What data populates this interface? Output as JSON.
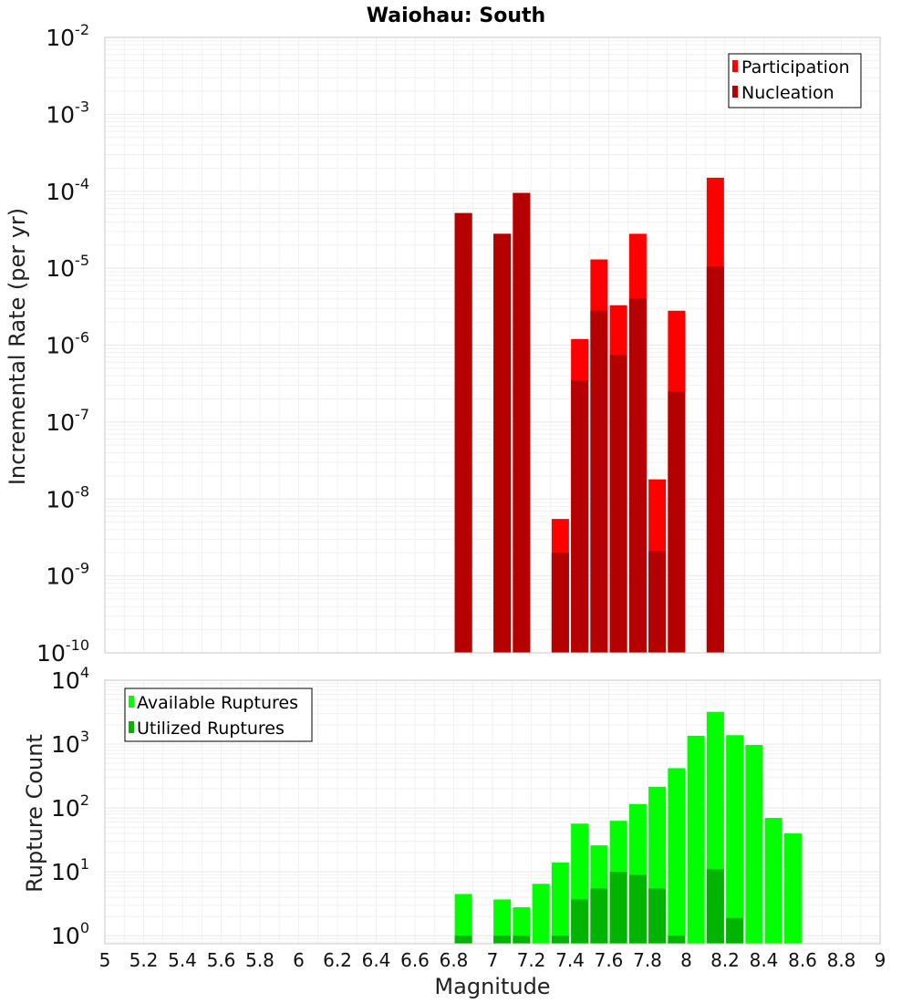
{
  "title": "Waiohau: South",
  "xlabel": "Magnitude",
  "chart_data": [
    {
      "type": "bar",
      "title": "Waiohau: South",
      "ylabel": "Incremental Rate (per yr)",
      "xlabel": "",
      "yscale": "log",
      "ylim": [
        1e-10,
        0.01
      ],
      "xlim": [
        5,
        9
      ],
      "legend": {
        "position": "top-right",
        "entries": [
          "Participation",
          "Nucleation"
        ]
      },
      "colors": {
        "Participation": "#ff0000",
        "Nucleation": "#b40000"
      },
      "x": [
        6.85,
        7.05,
        7.15,
        7.35,
        7.45,
        7.55,
        7.65,
        7.75,
        7.85,
        7.95,
        8.15
      ],
      "series": [
        {
          "name": "Participation",
          "values": [
            5.2e-05,
            2.8e-05,
            9.5e-05,
            5.5e-09,
            1.2e-06,
            1.3e-05,
            3.3e-06,
            2.8e-05,
            1.8e-08,
            2.8e-06,
            0.00015
          ]
        },
        {
          "name": "Nucleation",
          "values": [
            5.2e-05,
            2.8e-05,
            9.5e-05,
            2e-09,
            3.5e-07,
            2.8e-06,
            7.5e-07,
            4e-06,
            2.1e-09,
            2.5e-07,
            1.05e-05
          ]
        }
      ],
      "grid": true
    },
    {
      "type": "bar",
      "ylabel": "Rupture Count",
      "xlabel": "Magnitude",
      "yscale": "log",
      "ylim": [
        0.75,
        10000
      ],
      "xlim": [
        5,
        9
      ],
      "legend": {
        "position": "top-left",
        "entries": [
          "Available Ruptures",
          "Utilized Ruptures"
        ]
      },
      "colors": {
        "Available Ruptures": "#00ff00",
        "Utilized Ruptures": "#00b400"
      },
      "x": [
        6.85,
        7.05,
        7.15,
        7.25,
        7.35,
        7.45,
        7.55,
        7.65,
        7.75,
        7.85,
        7.95,
        8.05,
        8.15,
        8.25,
        8.35,
        8.45,
        8.55
      ],
      "series": [
        {
          "name": "Available Ruptures",
          "values": [
            4.5,
            3.7,
            2.8,
            6.5,
            14,
            57,
            26,
            63,
            115,
            215,
            420,
            1350,
            3200,
            1380,
            970,
            70,
            40
          ]
        },
        {
          "name": "Utilized Ruptures",
          "values": [
            1,
            1,
            1,
            null,
            1,
            3.7,
            5.5,
            10,
            9,
            5.5,
            1,
            null,
            11,
            1.9,
            null,
            null,
            null
          ]
        }
      ],
      "grid": true
    }
  ],
  "xticks": [
    "5",
    "5.2",
    "5.4",
    "5.6",
    "5.8",
    "6",
    "6.2",
    "6.4",
    "6.6",
    "6.8",
    "7",
    "7.2",
    "7.4",
    "7.6",
    "7.8",
    "8",
    "8.2",
    "8.4",
    "8.6",
    "8.8",
    "9"
  ],
  "top_yticks": [
    {
      "base": "10",
      "exp": "-10"
    },
    {
      "base": "10",
      "exp": "-9"
    },
    {
      "base": "10",
      "exp": "-8"
    },
    {
      "base": "10",
      "exp": "-7"
    },
    {
      "base": "10",
      "exp": "-6"
    },
    {
      "base": "10",
      "exp": "-5"
    },
    {
      "base": "10",
      "exp": "-4"
    },
    {
      "base": "10",
      "exp": "-3"
    },
    {
      "base": "10",
      "exp": "-2"
    }
  ],
  "bottom_yticks": [
    {
      "base": "10",
      "exp": "0"
    },
    {
      "base": "10",
      "exp": "1"
    },
    {
      "base": "10",
      "exp": "2"
    },
    {
      "base": "10",
      "exp": "3"
    },
    {
      "base": "10",
      "exp": "4"
    }
  ]
}
